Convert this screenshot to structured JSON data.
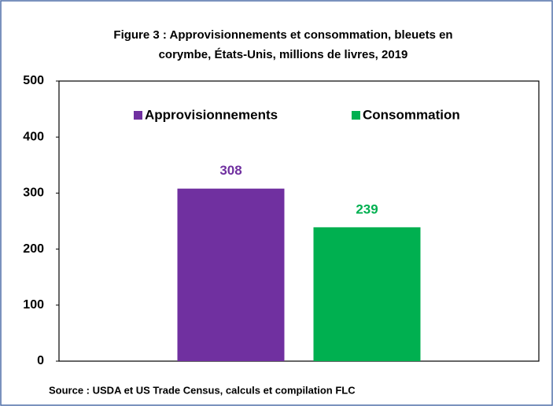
{
  "chart_data": {
    "type": "bar",
    "title": [
      "Figure 3 : Approvisionnements et consommation, bleuets en",
      "corymbe, États-Unis, millions de livres,  2019"
    ],
    "categories": [
      null
    ],
    "series": [
      {
        "name": "Approvisionnements",
        "color": "#7030a0",
        "values": [
          308
        ]
      },
      {
        "name": "Consommation",
        "color": "#00b050",
        "values": [
          239
        ]
      }
    ],
    "ylim": [
      0,
      500
    ],
    "yticks": [
      0,
      100,
      200,
      300,
      400,
      500
    ],
    "grid": false,
    "legend": "top",
    "source": "Source : USDA et US Trade Census, calculs et compilation FLC"
  }
}
